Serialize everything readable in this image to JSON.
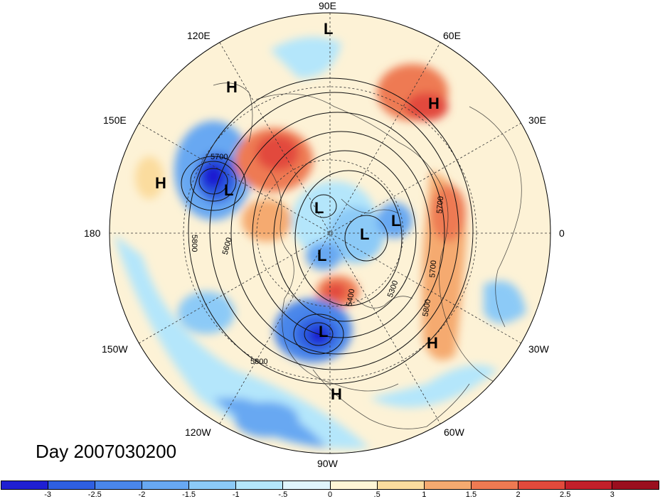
{
  "title": "Day 2007030200",
  "lon_labels": {
    "e90": "90E",
    "e120": "120E",
    "e60": "60E",
    "e150": "150E",
    "e30": "30E",
    "w180": "180",
    "zero": "0",
    "w150": "150W",
    "w30": "30W",
    "w120": "120W",
    "w60": "60W",
    "w90": "90W"
  },
  "pressure_centers": [
    {
      "type": "L",
      "label": "L"
    },
    {
      "type": "H",
      "label": "H"
    },
    {
      "type": "H",
      "label": "H"
    },
    {
      "type": "H",
      "label": "H"
    },
    {
      "type": "L",
      "label": "L"
    },
    {
      "type": "L",
      "label": "L"
    },
    {
      "type": "L",
      "label": "L"
    },
    {
      "type": "L",
      "label": "L"
    },
    {
      "type": "L",
      "label": "L"
    },
    {
      "type": "L",
      "label": "L"
    },
    {
      "type": "H",
      "label": "H"
    },
    {
      "type": "H",
      "label": "H"
    }
  ],
  "contour_labels": [
    "5700",
    "5800",
    "5600",
    "5700",
    "5800",
    "5300",
    "5800",
    "5400",
    "5700"
  ],
  "colorbar": {
    "ticks": [
      "-3",
      "-2.5",
      "-2",
      "-1.5",
      "-1",
      "-.5",
      "0",
      ".5",
      "1",
      "1.5",
      "2",
      "2.5",
      "3"
    ],
    "colors": [
      "#1f1fd2",
      "#2f5fe0",
      "#4a86ea",
      "#68a8f2",
      "#8ccaf7",
      "#b4e6fb",
      "#e0f5fc",
      "#fff6d6",
      "#fbdc9e",
      "#f5aa70",
      "#ee7a52",
      "#e24a3c",
      "#c21f2a",
      "#9a0f1e"
    ]
  }
}
